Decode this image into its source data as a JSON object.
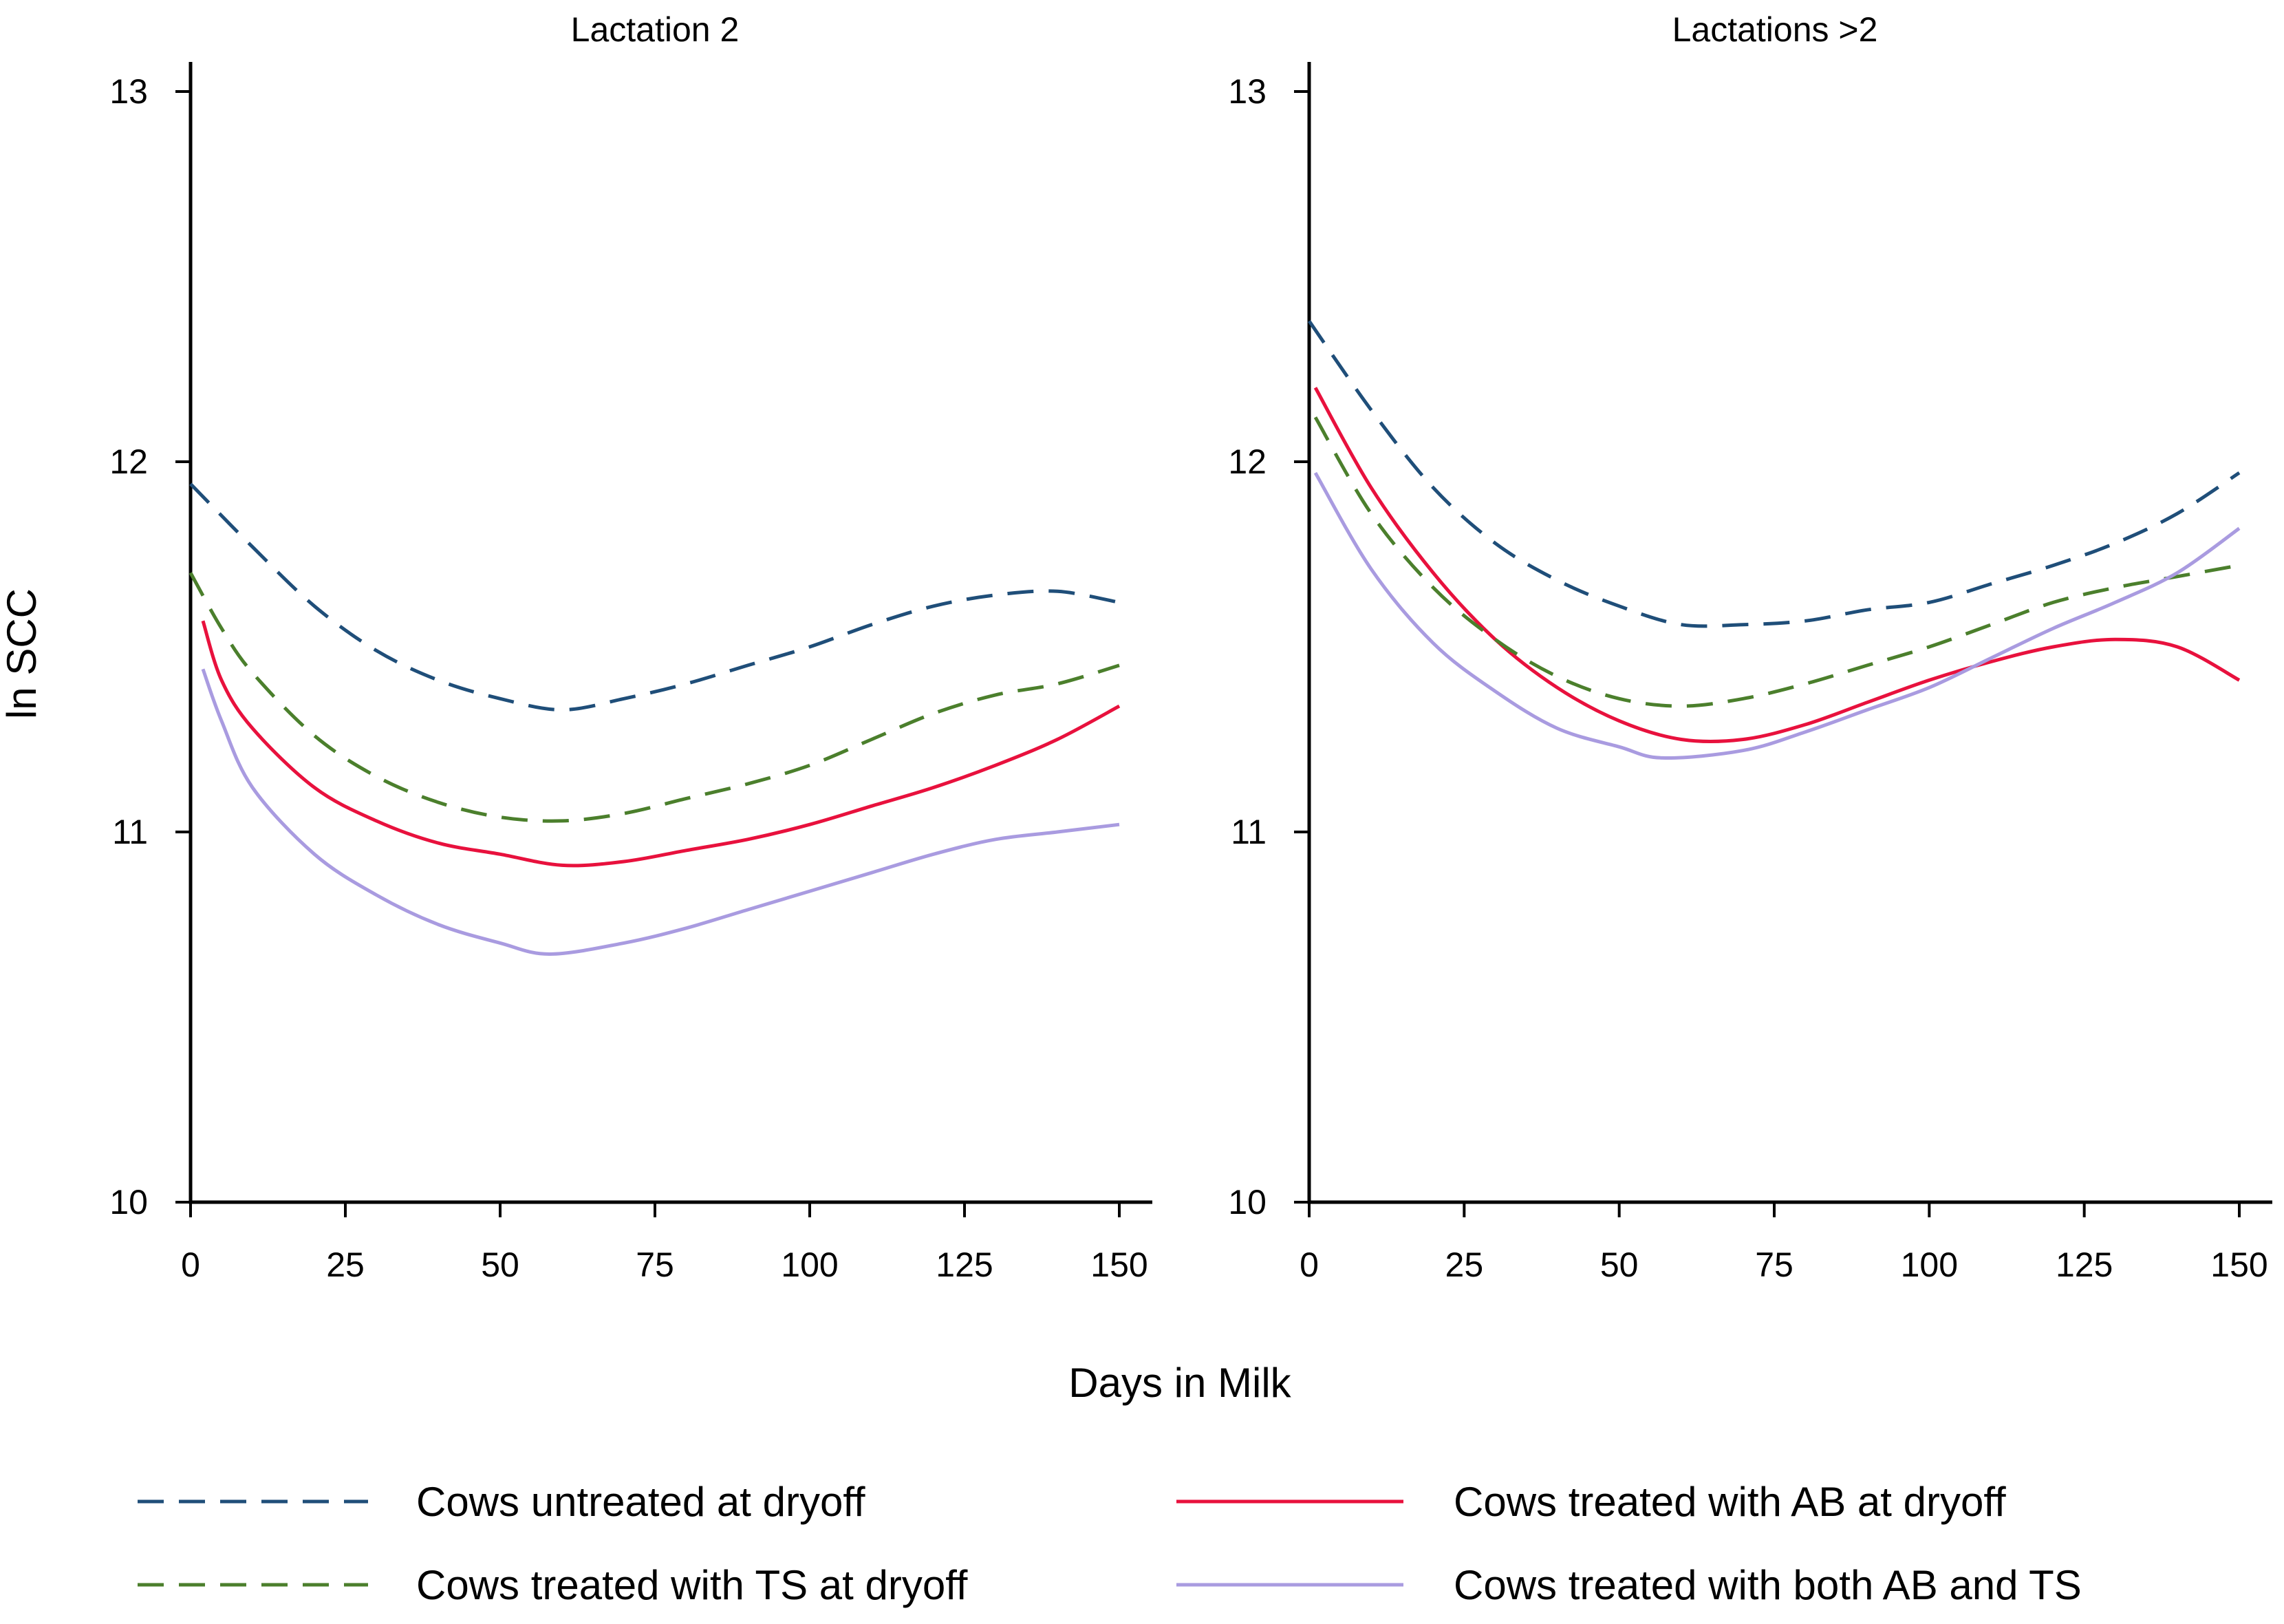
{
  "chart_data": {
    "type": "line",
    "xlabel": "Days in Milk",
    "ylabel": "ln SCC",
    "xlim": [
      0,
      150
    ],
    "ylim": [
      10,
      13
    ],
    "xticks": [
      0,
      25,
      50,
      75,
      100,
      125,
      150
    ],
    "yticks": [
      10,
      11,
      12,
      13
    ],
    "legend": {
      "placement": "bottom",
      "entries": [
        {
          "key": "untreated",
          "label": "Cows untreated at dryoff",
          "color": "#1f4e79",
          "style": "dashed"
        },
        {
          "key": "ab",
          "label": "Cows treated with AB at dryoff",
          "color": "#e8113d",
          "style": "solid"
        },
        {
          "key": "ts",
          "label": "Cows treated with TS at dryoff",
          "color": "#4b7f2c",
          "style": "dashed"
        },
        {
          "key": "both",
          "label": "Cows treated with both AB and TS",
          "color": "#a99be0",
          "style": "solid"
        }
      ]
    },
    "panels": [
      {
        "title": "Lactation 2",
        "series": [
          {
            "key": "untreated",
            "name": "Cows untreated at dryoff",
            "x": [
              0,
              10,
              20,
              30,
              40,
              50,
              60,
              70,
              80,
              90,
              100,
              110,
              120,
              130,
              140,
              150
            ],
            "y": [
              11.94,
              11.77,
              11.61,
              11.49,
              11.41,
              11.36,
              11.33,
              11.36,
              11.4,
              11.45,
              11.5,
              11.56,
              11.61,
              11.64,
              11.65,
              11.62
            ]
          },
          {
            "key": "ts",
            "name": "Cows treated with TS at dryoff",
            "x": [
              0,
              5,
              10,
              20,
              30,
              40,
              50,
              60,
              70,
              80,
              90,
              100,
              110,
              120,
              130,
              140,
              150
            ],
            "y": [
              11.7,
              11.55,
              11.43,
              11.26,
              11.15,
              11.08,
              11.04,
              11.03,
              11.05,
              11.09,
              11.13,
              11.18,
              11.25,
              11.32,
              11.37,
              11.4,
              11.45
            ]
          },
          {
            "key": "ab",
            "name": "Cows treated with AB at dryoff",
            "x": [
              2,
              5,
              10,
              20,
              30,
              40,
              50,
              60,
              70,
              80,
              90,
              100,
              110,
              120,
              130,
              140,
              150
            ],
            "y": [
              11.57,
              11.41,
              11.28,
              11.12,
              11.03,
              10.97,
              10.94,
              10.91,
              10.92,
              10.95,
              10.98,
              11.02,
              11.07,
              11.12,
              11.18,
              11.25,
              11.34
            ]
          },
          {
            "key": "both",
            "name": "Cows treated with both AB and TS",
            "x": [
              2,
              5,
              10,
              20,
              30,
              40,
              50,
              58,
              70,
              80,
              90,
              100,
              110,
              120,
              130,
              140,
              150
            ],
            "y": [
              11.44,
              11.3,
              11.12,
              10.94,
              10.83,
              10.75,
              10.7,
              10.67,
              10.7,
              10.74,
              10.79,
              10.84,
              10.89,
              10.94,
              10.98,
              11.0,
              11.02
            ]
          }
        ]
      },
      {
        "title": "Lactations >2",
        "series": [
          {
            "key": "untreated",
            "name": "Cows untreated at dryoff",
            "x": [
              0,
              10,
              20,
              30,
              40,
              50,
              60,
              70,
              80,
              90,
              100,
              110,
              120,
              130,
              140,
              150
            ],
            "y": [
              12.38,
              12.14,
              11.93,
              11.78,
              11.68,
              11.61,
              11.56,
              11.56,
              11.57,
              11.6,
              11.62,
              11.67,
              11.72,
              11.78,
              11.86,
              11.97
            ]
          },
          {
            "key": "ab",
            "name": "Cows treated with AB at dryoff",
            "x": [
              1,
              10,
              20,
              30,
              40,
              50,
              60,
              70,
              80,
              90,
              100,
              110,
              120,
              130,
              140,
              150
            ],
            "y": [
              12.2,
              11.93,
              11.7,
              11.52,
              11.39,
              11.3,
              11.25,
              11.25,
              11.29,
              11.35,
              11.41,
              11.46,
              11.5,
              11.52,
              11.5,
              11.41
            ]
          },
          {
            "key": "ts",
            "name": "Cows treated with TS at dryoff",
            "x": [
              1,
              10,
              20,
              30,
              40,
              50,
              60,
              70,
              80,
              90,
              100,
              110,
              120,
              130,
              140,
              150
            ],
            "y": [
              12.12,
              11.86,
              11.66,
              11.52,
              11.42,
              11.36,
              11.34,
              11.36,
              11.4,
              11.45,
              11.5,
              11.56,
              11.62,
              11.66,
              11.69,
              11.72
            ]
          },
          {
            "key": "both",
            "name": "Cows treated with both AB and TS",
            "x": [
              1,
              10,
              20,
              30,
              40,
              50,
              57,
              70,
              80,
              90,
              100,
              110,
              120,
              130,
              140,
              150
            ],
            "y": [
              11.97,
              11.71,
              11.51,
              11.38,
              11.28,
              11.23,
              11.2,
              11.22,
              11.27,
              11.33,
              11.39,
              11.47,
              11.55,
              11.62,
              11.7,
              11.82
            ]
          }
        ]
      }
    ]
  }
}
